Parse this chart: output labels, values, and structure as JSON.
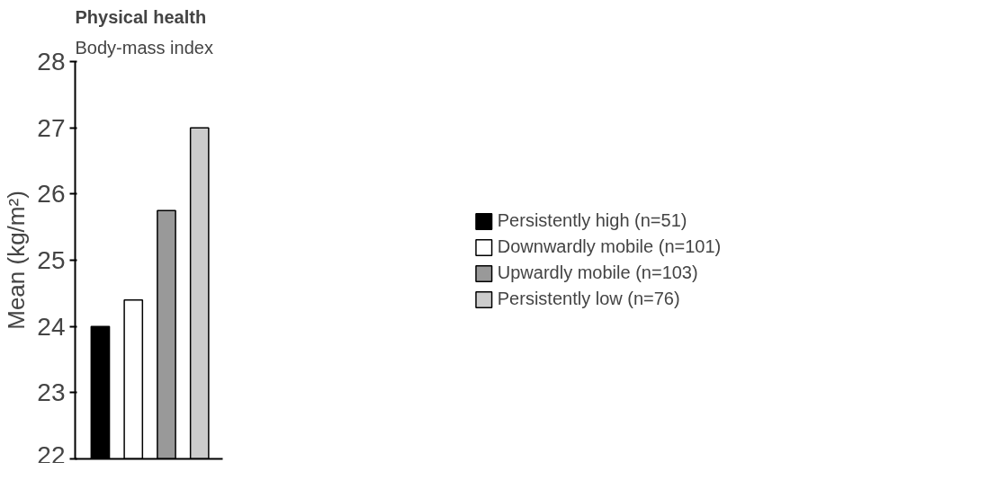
{
  "chart_data": {
    "type": "bar",
    "title": "Physical health",
    "subtitle": "Body-mass index",
    "ylabel": "Mean (kg/m²)",
    "categories": [
      null,
      null,
      null,
      null
    ],
    "series": [
      {
        "name": "Persistently high (n=51)",
        "color": "#000000",
        "values": [
          24.0,
          null,
          null,
          null
        ]
      },
      {
        "name": "Downwardly mobile (n=101)",
        "color": "#ffffff",
        "values": [
          null,
          24.4,
          null,
          null
        ]
      },
      {
        "name": "Upwardly mobile (n=103)",
        "color": "#999999",
        "values": [
          null,
          null,
          25.75,
          null
        ]
      },
      {
        "name": "Persistently low (n=76)",
        "color": "#cccccc",
        "values": [
          null,
          null,
          null,
          27.0
        ]
      }
    ],
    "ylim": [
      22,
      28
    ],
    "yticks": [
      22,
      23,
      24,
      25,
      26,
      27,
      28
    ],
    "grid": false,
    "legend": "right",
    "tick_labels": "y"
  }
}
